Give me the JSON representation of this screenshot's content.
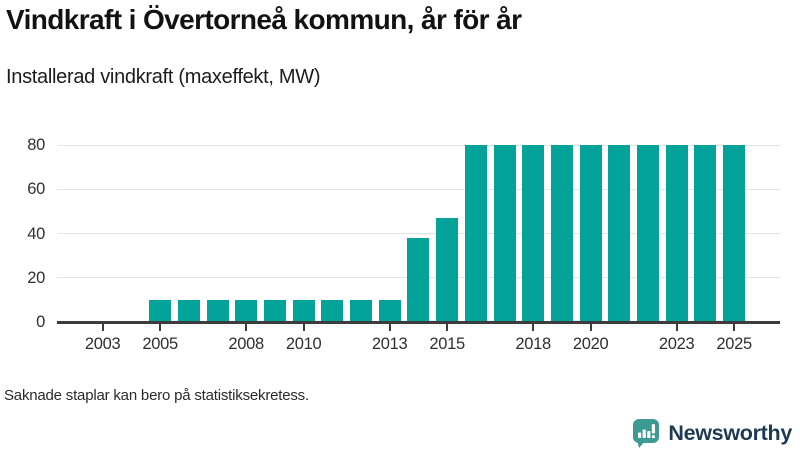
{
  "header": {
    "title": "Vindkraft i Övertorneå kommun, år för år",
    "subtitle": "Installerad vindkraft (maxeffekt, MW)"
  },
  "footer": {
    "note": "Saknade staplar kan bero på statistiksekretess.",
    "brand_name": "Newsworthy"
  },
  "colors": {
    "bar": "#04a39a",
    "axis": "#3c3c3c",
    "grid": "#e4e4e4",
    "tick_label": "#303030",
    "logo_teal": "#3d9a93",
    "logo_text": "#1d3a52"
  },
  "chart_data": {
    "type": "bar",
    "title": "Vindkraft i Övertorneå kommun, år för år",
    "subtitle": "Installerad vindkraft (maxeffekt, MW)",
    "unit": "MW",
    "xlabel": "",
    "ylabel": "Installerad vindkraft (maxeffekt, MW)",
    "ylim": [
      0,
      80
    ],
    "y_ticks": [
      0,
      20,
      40,
      60,
      80
    ],
    "x_tick_years": [
      2003,
      2005,
      2008,
      2010,
      2013,
      2015,
      2018,
      2020,
      2023,
      2025
    ],
    "grid": "horizontal-only",
    "legend": "none",
    "bar_color": "#04a39a",
    "years": [
      2002,
      2003,
      2004,
      2005,
      2006,
      2007,
      2008,
      2009,
      2010,
      2011,
      2012,
      2013,
      2014,
      2015,
      2016,
      2017,
      2018,
      2019,
      2020,
      2021,
      2022,
      2023,
      2024,
      2025
    ],
    "values": [
      null,
      null,
      null,
      10,
      10,
      10,
      10,
      10,
      10,
      10,
      10,
      10,
      38,
      47,
      80,
      80,
      80,
      80,
      80,
      80,
      80,
      80,
      80,
      80
    ],
    "missing_note": "Saknade staplar kan bero på statistiksekretess."
  }
}
